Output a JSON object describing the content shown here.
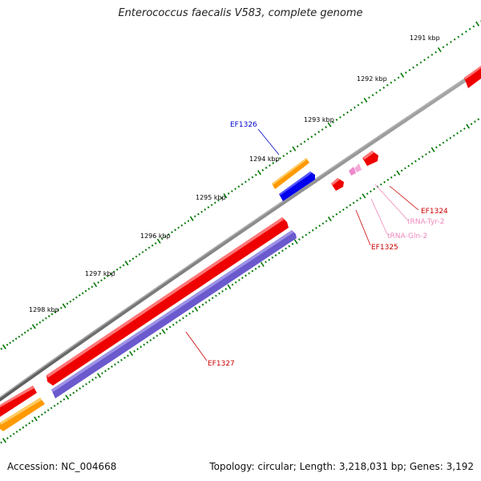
{
  "title": "Enterococcus faecalis V583, complete genome",
  "accession": "Accession: NC_004668",
  "summary": "Topology: circular; Length: 3,218,031 bp; Genes: 3,192",
  "colors": {
    "backbone": "#808080",
    "cds_forward": "#ee0000",
    "cds_reverse": "#6a5acd",
    "orange_track": "#ff9900",
    "blue_track": "#0000ee",
    "trna": "#ee88cc",
    "tick": "#007700"
  },
  "ruler": [
    {
      "label": "1291 kbp"
    },
    {
      "label": "1292 kbp"
    },
    {
      "label": "1293 kbp"
    },
    {
      "label": "1294 kbp"
    },
    {
      "label": "1295 kbp"
    },
    {
      "label": "1296 kbp"
    },
    {
      "label": "1297 kbp"
    },
    {
      "label": "1298 kbp"
    }
  ],
  "features": [
    {
      "label": "EF1324",
      "color": "#cc0000"
    },
    {
      "label": "tRNA-Tyr-2",
      "color": "#ee88bb"
    },
    {
      "label": "tRNA-Gln-2",
      "color": "#ee88bb"
    },
    {
      "label": "EF1325",
      "color": "#cc0000"
    },
    {
      "label": "EF1326",
      "color": "#0000cc"
    },
    {
      "label": "EF1327",
      "color": "#cc0000"
    }
  ]
}
